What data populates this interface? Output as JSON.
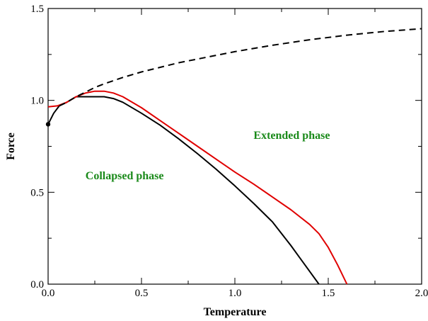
{
  "chart_data": {
    "type": "line",
    "xlabel": "Temperature",
    "ylabel": "Force",
    "xlim": [
      0.0,
      2.0
    ],
    "ylim": [
      0.0,
      1.5
    ],
    "x_ticks": [
      0.0,
      0.5,
      1.0,
      1.5,
      2.0
    ],
    "x_tick_labels": [
      "0.0",
      "0.5",
      "1.0",
      "1.5",
      "2.0"
    ],
    "y_ticks": [
      0.0,
      0.5,
      1.0,
      1.5
    ],
    "y_tick_labels": [
      "0.0",
      "0.5",
      "1.0",
      "1.5"
    ],
    "grid": false,
    "series": [
      {
        "style": "solid",
        "color": "#000000",
        "x": [
          0.0,
          0.03,
          0.06,
          0.1,
          0.15,
          0.2,
          0.25,
          0.3,
          0.35,
          0.4,
          0.5,
          0.6,
          0.7,
          0.8,
          0.9,
          1.0,
          1.1,
          1.2,
          1.3,
          1.35,
          1.4,
          1.45
        ],
        "y": [
          0.87,
          0.93,
          0.97,
          0.99,
          1.02,
          1.02,
          1.02,
          1.02,
          1.01,
          0.99,
          0.93,
          0.865,
          0.79,
          0.71,
          0.625,
          0.535,
          0.44,
          0.34,
          0.21,
          0.14,
          0.07,
          0.0
        ]
      },
      {
        "style": "solid",
        "color": "#e00000",
        "x": [
          0.0,
          0.05,
          0.1,
          0.15,
          0.2,
          0.25,
          0.3,
          0.35,
          0.4,
          0.5,
          0.6,
          0.7,
          0.8,
          0.9,
          1.0,
          1.1,
          1.2,
          1.3,
          1.4,
          1.45,
          1.5,
          1.55,
          1.6
        ],
        "y": [
          0.965,
          0.97,
          0.99,
          1.02,
          1.04,
          1.05,
          1.05,
          1.04,
          1.02,
          0.96,
          0.89,
          0.82,
          0.75,
          0.68,
          0.61,
          0.545,
          0.475,
          0.405,
          0.325,
          0.275,
          0.2,
          0.105,
          0.0
        ]
      },
      {
        "style": "dashed",
        "color": "#000000",
        "x": [
          0.06,
          0.1,
          0.15,
          0.2,
          0.25,
          0.3,
          0.4,
          0.5,
          0.6,
          0.7,
          0.8,
          0.9,
          1.0,
          1.2,
          1.4,
          1.6,
          1.8,
          2.0
        ],
        "y": [
          0.97,
          0.99,
          1.02,
          1.045,
          1.07,
          1.09,
          1.125,
          1.155,
          1.18,
          1.205,
          1.225,
          1.245,
          1.265,
          1.3,
          1.33,
          1.355,
          1.375,
          1.39
        ]
      }
    ],
    "marker": {
      "x": 0.0,
      "y": 0.87,
      "color": "#000000"
    },
    "annotations": [
      {
        "text": "Collapsed phase",
        "x": 0.2,
        "y": 0.57,
        "color": "#1a8a1a"
      },
      {
        "text": "Extended phase",
        "x": 1.1,
        "y": 0.79,
        "color": "#1a8a1a"
      }
    ]
  }
}
